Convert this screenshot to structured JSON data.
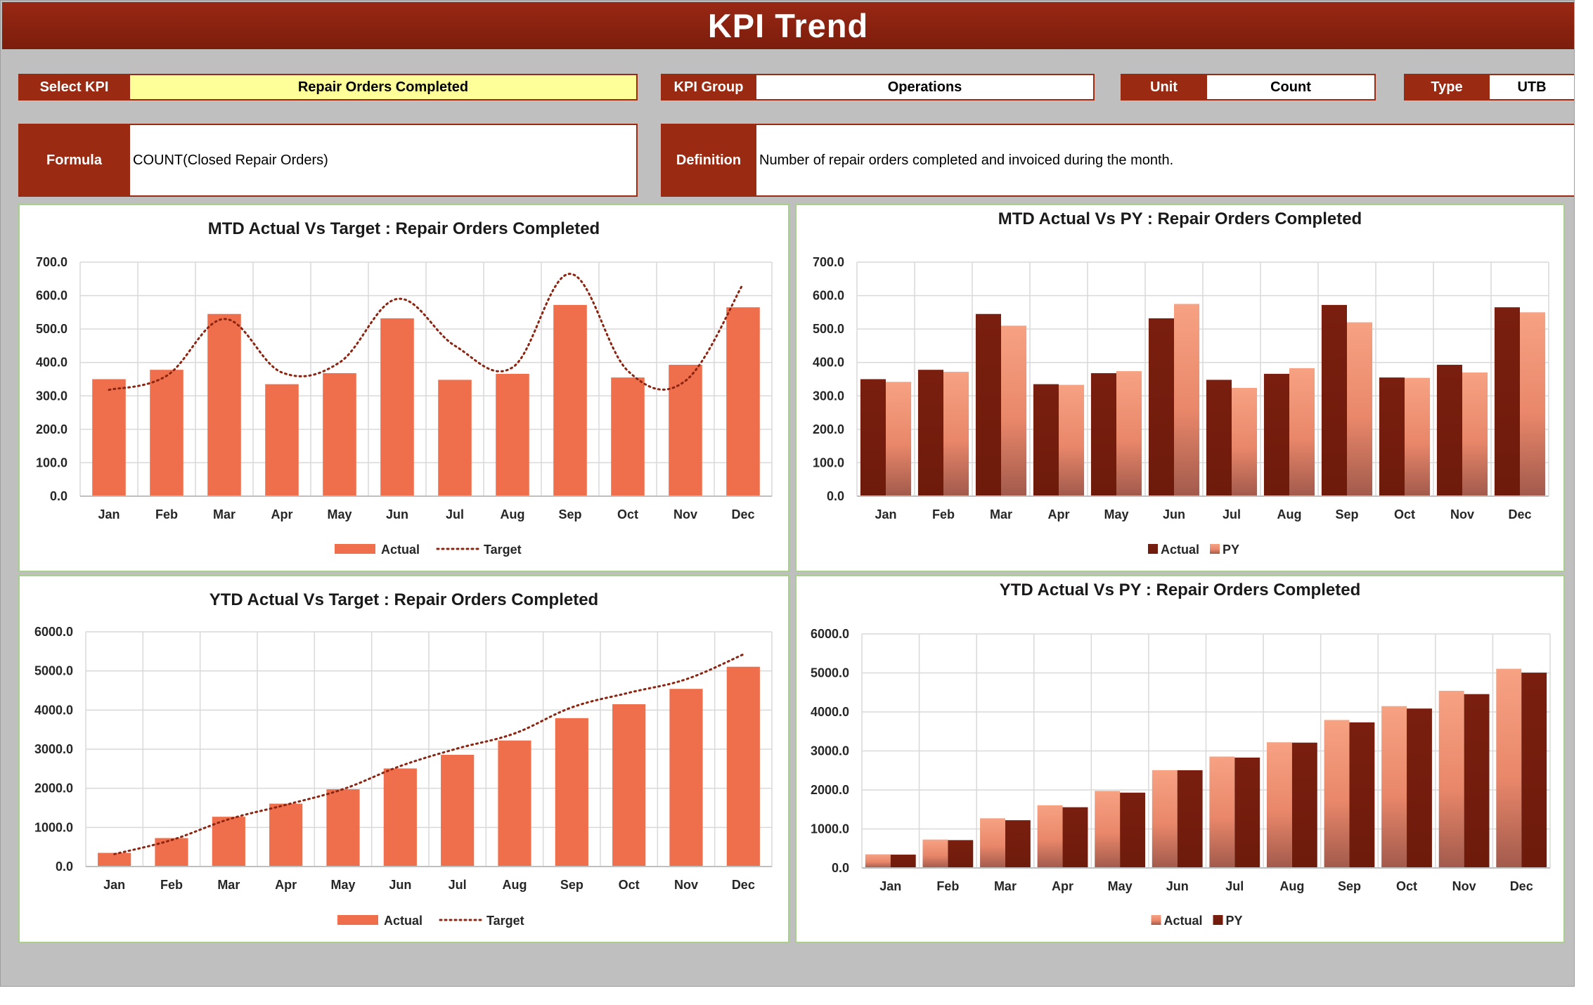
{
  "title": "KPI Trend",
  "selectors": {
    "select_kpi_label": "Select KPI",
    "select_kpi_value": "Repair Orders Completed",
    "kpi_group_label": "KPI Group",
    "kpi_group_value": "Operations",
    "unit_label": "Unit",
    "unit_value": "Count",
    "type_label": "Type",
    "type_value": "UTB",
    "formula_label": "Formula",
    "formula_value": "COUNT(Closed Repair Orders)",
    "definition_label": "Definition",
    "definition_value": "Number of repair orders completed and invoiced during the month."
  },
  "colors": {
    "header": "#982814",
    "label_fill": "#9a2a12",
    "actual_bar": "#ef6f4c",
    "target_line": "#8b2410",
    "dark_bar": "#7b2010",
    "light_bar": "#f59a7e",
    "panel_border": "#a9cf8e"
  },
  "chart_data": [
    {
      "id": "mtd-target",
      "type": "bar",
      "title": "MTD Actual Vs Target : Repair Orders Completed",
      "categories": [
        "Jan",
        "Feb",
        "Mar",
        "Apr",
        "May",
        "Jun",
        "Jul",
        "Aug",
        "Sep",
        "Oct",
        "Nov",
        "Dec"
      ],
      "series": [
        {
          "name": "Actual",
          "kind": "bar",
          "values": [
            350,
            378,
            545,
            335,
            368,
            532,
            348,
            366,
            572,
            355,
            393,
            565
          ]
        },
        {
          "name": "Target",
          "kind": "dotted-line",
          "values": [
            318,
            360,
            530,
            370,
            400,
            590,
            450,
            385,
            665,
            375,
            345,
            635
          ]
        }
      ],
      "ylim": [
        0,
        700
      ],
      "ticks": [
        "0.0",
        "100.0",
        "200.0",
        "300.0",
        "400.0",
        "500.0",
        "600.0",
        "700.0"
      ],
      "legend": "bottom"
    },
    {
      "id": "mtd-py",
      "type": "bar",
      "title": "MTD Actual Vs PY : Repair Orders Completed",
      "categories": [
        "Jan",
        "Feb",
        "Mar",
        "Apr",
        "May",
        "Jun",
        "Jul",
        "Aug",
        "Sep",
        "Oct",
        "Nov",
        "Dec"
      ],
      "series": [
        {
          "name": "Actual",
          "kind": "dark",
          "values": [
            350,
            378,
            545,
            335,
            368,
            532,
            348,
            366,
            572,
            355,
            393,
            565
          ]
        },
        {
          "name": "PY",
          "kind": "light",
          "values": [
            342,
            372,
            510,
            333,
            374,
            575,
            324,
            383,
            520,
            354,
            370,
            550
          ]
        }
      ],
      "ylim": [
        0,
        700
      ],
      "ticks": [
        "0.0",
        "100.0",
        "200.0",
        "300.0",
        "400.0",
        "500.0",
        "600.0",
        "700.0"
      ],
      "legend": "bottom"
    },
    {
      "id": "ytd-target",
      "type": "bar",
      "title": "YTD Actual Vs Target : Repair Orders Completed",
      "categories": [
        "Jan",
        "Feb",
        "Mar",
        "Apr",
        "May",
        "Jun",
        "Jul",
        "Aug",
        "Sep",
        "Oct",
        "Nov",
        "Dec"
      ],
      "series": [
        {
          "name": "Actual",
          "kind": "bar",
          "values": [
            350,
            728,
            1273,
            1608,
            1976,
            2508,
            2856,
            3222,
            3794,
            4149,
            4542,
            5107
          ]
        },
        {
          "name": "Target",
          "kind": "dotted-line",
          "values": [
            318,
            678,
            1208,
            1578,
            1978,
            2568,
            3018,
            3403,
            4068,
            4443,
            4788,
            5423
          ]
        }
      ],
      "ylim": [
        0,
        6000
      ],
      "ticks": [
        "0.0",
        "1000.0",
        "2000.0",
        "3000.0",
        "4000.0",
        "5000.0",
        "6000.0"
      ],
      "legend": "bottom"
    },
    {
      "id": "ytd-py",
      "type": "bar",
      "title": "YTD Actual Vs PY : Repair Orders Completed",
      "categories": [
        "Jan",
        "Feb",
        "Mar",
        "Apr",
        "May",
        "Jun",
        "Jul",
        "Aug",
        "Sep",
        "Oct",
        "Nov",
        "Dec"
      ],
      "series": [
        {
          "name": "Actual",
          "kind": "light",
          "values": [
            350,
            728,
            1273,
            1608,
            1976,
            2508,
            2856,
            3222,
            3794,
            4149,
            4542,
            5107
          ]
        },
        {
          "name": "PY",
          "kind": "dark",
          "values": [
            342,
            714,
            1224,
            1557,
            1931,
            2506,
            2830,
            3213,
            3733,
            4087,
            4457,
            5007
          ]
        }
      ],
      "ylim": [
        0,
        6000
      ],
      "ticks": [
        "0.0",
        "1000.0",
        "2000.0",
        "3000.0",
        "4000.0",
        "5000.0",
        "6000.0"
      ],
      "legend": "bottom"
    }
  ]
}
